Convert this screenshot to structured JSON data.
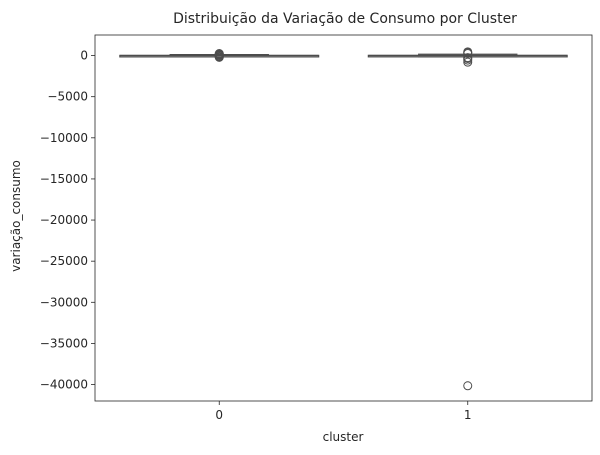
{
  "chart_data": {
    "type": "box",
    "title": "Distribuição da Variação de Consumo por Cluster",
    "xlabel": "cluster",
    "ylabel": "variação_consumo",
    "categories": [
      "0",
      "1"
    ],
    "ylim": [
      -42000,
      2500
    ],
    "yticks": [
      0,
      -5000,
      -10000,
      -15000,
      -20000,
      -25000,
      -30000,
      -35000,
      -40000
    ],
    "ytick_labels": [
      "0",
      "−5000",
      "−10000",
      "−15000",
      "−20000",
      "−25000",
      "−30000",
      "−35000",
      "−40000"
    ],
    "grid": false,
    "box_color": "#ffffff",
    "line_color": "#4d4d4d",
    "boxes": [
      {
        "category": "0",
        "whisker_low": -120,
        "q1": -20,
        "median": 0,
        "q3": 20,
        "whisker_high": 120,
        "outliers": [
          -220,
          -180,
          -140,
          -100,
          0,
          60,
          100,
          150,
          200,
          250
        ]
      },
      {
        "category": "1",
        "whisker_low": -160,
        "q1": -25,
        "median": 0,
        "q3": 25,
        "whisker_high": 160,
        "outliers": [
          -800,
          -550,
          -350,
          -250,
          250,
          350,
          450,
          -40150
        ]
      }
    ]
  }
}
